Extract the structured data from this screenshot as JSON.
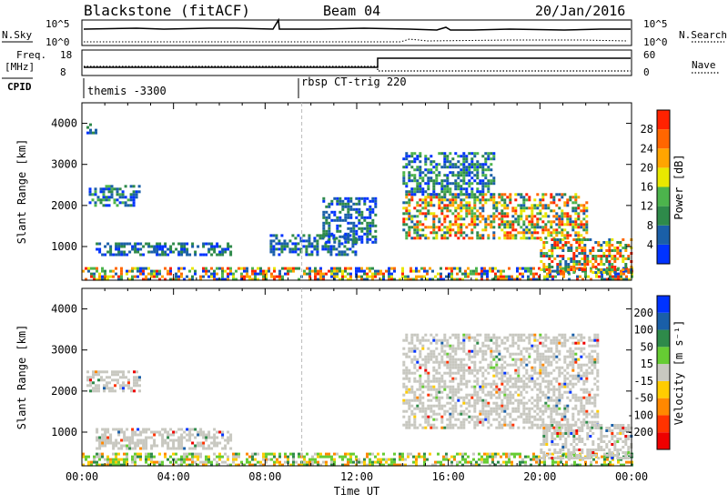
{
  "header": {
    "station": "Blackstone (fitACF)",
    "beam": "Beam 04",
    "date": "20/Jan/2016"
  },
  "top_panels": {
    "nsky_label": "N.Sky",
    "nsky_top": "10^5",
    "nsky_bottom": "10^0",
    "nsky_right_top": "10^5",
    "nsky_right_bottom": "10^0",
    "nsearch_label": "N.Search",
    "freq_label_1": "Freq.",
    "freq_label_2": "[MHz]",
    "freq_top": "18",
    "freq_bottom": "8",
    "nave_top": "60",
    "nave_bottom": "0",
    "nave_label": "Nave",
    "cpid_label": "CPID",
    "cpid_1": "themis -3300",
    "cpid_2": "rbsp CT-trig 220"
  },
  "chart_data": [
    {
      "type": "heatmap",
      "title": "",
      "ylabel": "Slant Range [km]",
      "xlabel": "",
      "xlim": [
        0,
        24
      ],
      "ylim": [
        180,
        4500
      ],
      "yticks": [
        1000,
        2000,
        3000,
        4000
      ],
      "colorbar": {
        "label": "Power [dB]",
        "ticks": [
          "4",
          "8",
          "12",
          "16",
          "20",
          "24",
          "28"
        ],
        "colors": [
          "#0033ff",
          "#1a5fa8",
          "#2e8a4a",
          "#4cb44c",
          "#e8e800",
          "#ffa500",
          "#ff6600",
          "#ff2200"
        ]
      },
      "echo_regions": [
        {
          "t0": 0.0,
          "t1": 24.0,
          "r0": 200,
          "r1": 500,
          "level": "mixed-high"
        },
        {
          "t0": 0.3,
          "t1": 2.5,
          "r0": 2000,
          "r1": 2500,
          "level": "mid"
        },
        {
          "t0": 0.2,
          "t1": 0.6,
          "r0": 3800,
          "r1": 4000,
          "level": "low"
        },
        {
          "t0": 0.6,
          "t1": 6.5,
          "r0": 800,
          "r1": 1100,
          "level": "low"
        },
        {
          "t0": 8.2,
          "t1": 12.0,
          "r0": 800,
          "r1": 1300,
          "level": "low"
        },
        {
          "t0": 10.5,
          "t1": 12.8,
          "r0": 1100,
          "r1": 2200,
          "level": "low"
        },
        {
          "t0": 14.0,
          "t1": 22.0,
          "r0": 1200,
          "r1": 2300,
          "level": "high"
        },
        {
          "t0": 14.0,
          "t1": 18.0,
          "r0": 2300,
          "r1": 3300,
          "level": "mid"
        },
        {
          "t0": 20.0,
          "t1": 24.0,
          "r0": 400,
          "r1": 1200,
          "level": "high"
        }
      ]
    },
    {
      "type": "heatmap",
      "title": "",
      "ylabel": "Slant Range [km]",
      "xlabel": "Time UT",
      "xlim": [
        0,
        24
      ],
      "ylim": [
        180,
        4500
      ],
      "yticks": [
        1000,
        2000,
        3000,
        4000
      ],
      "xticks": [
        "00:00",
        "04:00",
        "08:00",
        "12:00",
        "16:00",
        "20:00",
        "00:00"
      ],
      "colorbar": {
        "label": "Velocity [m s⁻¹]",
        "ticks": [
          "200",
          "100",
          "50",
          "15",
          "-15",
          "-50",
          "-100",
          "-200"
        ],
        "colors": [
          "#0033ff",
          "#1a5fa8",
          "#2e8a4a",
          "#66cc33",
          "#c8c8c0",
          "#ffcc00",
          "#ff8800",
          "#ff3300",
          "#ee0000"
        ]
      },
      "echo_regions": [
        {
          "t0": 0.0,
          "t1": 24.0,
          "r0": 200,
          "r1": 500,
          "level": "mixed"
        },
        {
          "t0": 0.2,
          "t1": 2.5,
          "r0": 2000,
          "r1": 2500,
          "level": "ground"
        },
        {
          "t0": 0.6,
          "t1": 6.5,
          "r0": 600,
          "r1": 1100,
          "level": "ground"
        },
        {
          "t0": 14.0,
          "t1": 22.5,
          "r0": 1100,
          "r1": 3400,
          "level": "ground"
        },
        {
          "t0": 20.0,
          "t1": 24.0,
          "r0": 400,
          "r1": 1200,
          "level": "ground"
        }
      ]
    }
  ]
}
